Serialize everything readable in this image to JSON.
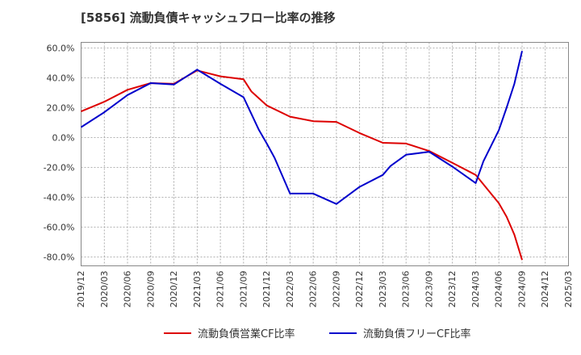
{
  "chart_data": {
    "type": "line",
    "title": "[5856]  流動負債キャッシュフロー比率の推移",
    "xlabel": "",
    "ylabel": "",
    "ylim": [
      -86,
      63
    ],
    "y_ticks": [
      60,
      40,
      20,
      0,
      -20,
      -40,
      -60,
      -80
    ],
    "y_tick_labels": [
      "60.0%",
      "40.0%",
      "20.0%",
      "0.0%",
      "-20.0%",
      "-40.0%",
      "-60.0%",
      "-80.0%"
    ],
    "x_tick_labels": [
      "2019/12",
      "2020/03",
      "2020/06",
      "2020/09",
      "2020/12",
      "2021/03",
      "2021/06",
      "2021/09",
      "2021/12",
      "2022/03",
      "2022/06",
      "2022/09",
      "2022/12",
      "2023/03",
      "2023/06",
      "2023/09",
      "2023/12",
      "2024/03",
      "2024/06",
      "2024/09",
      "2024/12",
      "2025/03"
    ],
    "grid": true,
    "legend_position": "bottom",
    "series": [
      {
        "name": "流動負債営業CF比率",
        "color": "#dd0000",
        "x": [
          "2019/12",
          "2020/03",
          "2020/06",
          "2020/09",
          "2020/12",
          "2021/03",
          "2021/06",
          "2021/09",
          "2021/10",
          "2021/12",
          "2022/03",
          "2022/06",
          "2022/09",
          "2022/12",
          "2023/03",
          "2023/06",
          "2023/09",
          "2023/12",
          "2024/03",
          "2024/06",
          "2024/07",
          "2024/08",
          "2024/09"
        ],
        "values": [
          17.5,
          24,
          32,
          36.5,
          36,
          45,
          41,
          39,
          31,
          21.5,
          14,
          11,
          10.5,
          3,
          -3.5,
          -4,
          -9,
          -17,
          -25,
          -44,
          -53,
          -65,
          -82
        ]
      },
      {
        "name": "流動負債フリーCF比率",
        "color": "#0000cc",
        "x": [
          "2019/12",
          "2020/03",
          "2020/06",
          "2020/09",
          "2020/12",
          "2021/03",
          "2021/06",
          "2021/09",
          "2021/10",
          "2021/11",
          "2021/12",
          "2022/01",
          "2022/03",
          "2022/06",
          "2022/09",
          "2022/12",
          "2023/03",
          "2023/04",
          "2023/06",
          "2023/09",
          "2023/12",
          "2024/03",
          "2024/04",
          "2024/06",
          "2024/07",
          "2024/08",
          "2024/09"
        ],
        "values": [
          7,
          17,
          28.5,
          36.5,
          35.5,
          45.5,
          36,
          27,
          16,
          5,
          -4,
          -13.5,
          -37.5,
          -37.5,
          -44.5,
          -33,
          -25,
          -19,
          -11.5,
          -9.5,
          -19.5,
          -30.5,
          -16,
          5,
          20,
          36,
          58
        ]
      }
    ]
  }
}
